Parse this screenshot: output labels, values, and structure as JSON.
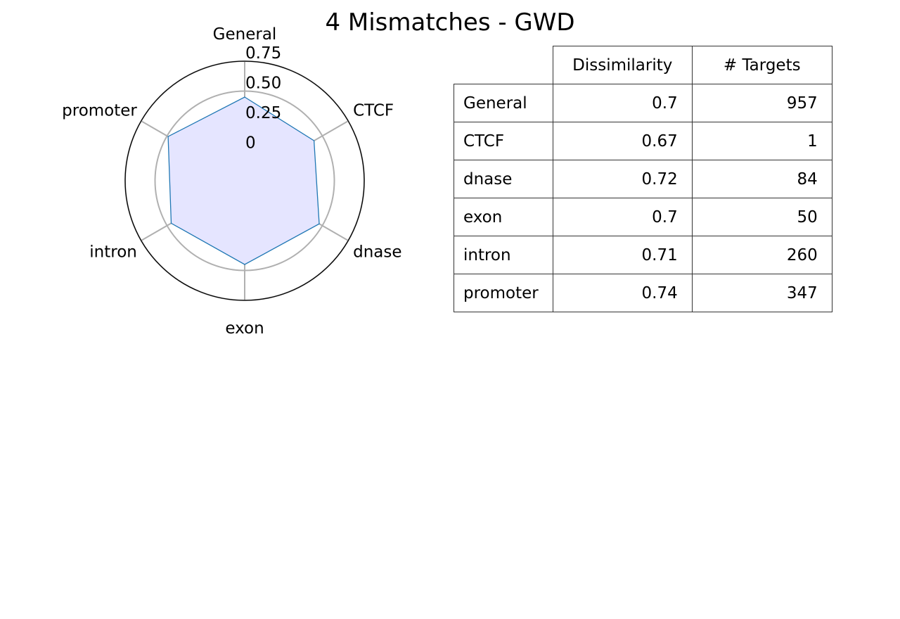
{
  "chart_data": {
    "type": "radar",
    "title": "4 Mismatches - GWD",
    "categories": [
      "General",
      "CTCF",
      "dnase",
      "exon",
      "intron",
      "promoter"
    ],
    "radial_ticks": [
      0,
      0.25,
      0.5,
      0.75
    ],
    "radial_tick_labels": [
      "0",
      "0.25",
      "0.50",
      "0.75"
    ],
    "rlim": [
      -0.25,
      0.75
    ],
    "series": [
      {
        "values": [
          0.45,
          0.42,
          0.47,
          0.45,
          0.46,
          0.49
        ]
      }
    ],
    "colors": {
      "line": "#1f77b4",
      "fill": "#e5e5ff",
      "grid": "#b0b0b0",
      "frame": "#000000"
    },
    "table": {
      "columns": [
        "Dissimilarity",
        "# Targets"
      ],
      "rows": [
        {
          "label": "General",
          "dissimilarity": "0.7",
          "targets": "957"
        },
        {
          "label": "CTCF",
          "dissimilarity": "0.67",
          "targets": "1"
        },
        {
          "label": "dnase",
          "dissimilarity": "0.72",
          "targets": "84"
        },
        {
          "label": "exon",
          "dissimilarity": "0.7",
          "targets": "50"
        },
        {
          "label": "intron",
          "dissimilarity": "0.71",
          "targets": "260"
        },
        {
          "label": "promoter",
          "dissimilarity": "0.74",
          "targets": "347"
        }
      ]
    }
  }
}
